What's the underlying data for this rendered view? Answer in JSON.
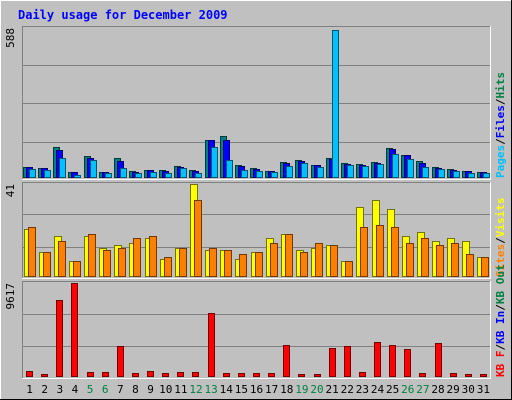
{
  "chart_data": {
    "type": "bar",
    "title": "Daily usage for December 2009",
    "categories": [
      "1",
      "2",
      "3",
      "4",
      "5",
      "6",
      "7",
      "8",
      "9",
      "10",
      "11",
      "12",
      "13",
      "14",
      "15",
      "16",
      "17",
      "18",
      "19",
      "20",
      "21",
      "22",
      "23",
      "24",
      "25",
      "26",
      "27",
      "28",
      "29",
      "30",
      "31"
    ],
    "weekend_categories": [
      "5",
      "6",
      "12",
      "13",
      "19",
      "20",
      "26",
      "27"
    ],
    "panels": [
      {
        "name": "hits-files-pages",
        "ymax": 588,
        "ymax_label": "588",
        "legend_words": [
          {
            "text": "Pages",
            "color": "#00c0ff"
          },
          {
            "text": "/",
            "color": "#000000"
          },
          {
            "text": "Files",
            "color": "#0000ff"
          },
          {
            "text": "/",
            "color": "#000000"
          },
          {
            "text": "Hits",
            "color": "#008040"
          }
        ],
        "series": [
          {
            "key": "hits",
            "color": "#008080",
            "values": [
              45,
              38,
              120,
              25,
              85,
              25,
              80,
              28,
              32,
              30,
              48,
              30,
              150,
              165,
              50,
              38,
              28,
              62,
              72,
              52,
              80,
              58,
              55,
              62,
              118,
              92,
              68,
              42,
              35,
              28,
              25
            ]
          },
          {
            "key": "files",
            "color": "#0000ff",
            "values": [
              42,
              38,
              110,
              22,
              80,
              22,
              68,
              25,
              30,
              28,
              45,
              26,
              148,
              150,
              48,
              35,
              26,
              60,
              68,
              50,
              75,
              56,
              52,
              60,
              115,
              90,
              60,
              40,
              32,
              26,
              22
            ]
          },
          {
            "key": "pages",
            "color": "#00c0ff",
            "values": [
              35,
              32,
              78,
              10,
              70,
              18,
              40,
              18,
              25,
              20,
              38,
              20,
              120,
              72,
              32,
              28,
              22,
              48,
              60,
              42,
              580,
              52,
              48,
              55,
              95,
              75,
              45,
              35,
              28,
              20,
              20
            ]
          }
        ]
      },
      {
        "name": "visits-sites",
        "ymax": 41,
        "ymax_label": "41",
        "legend_words": [
          {
            "text": "Sites",
            "color": "#ff8000"
          },
          {
            "text": "/",
            "color": "#000000"
          },
          {
            "text": "Visits",
            "color": "#ffff00"
          }
        ],
        "series": [
          {
            "key": "visits",
            "color": "#ffff00",
            "values": [
              21,
              11,
              18,
              7,
              18,
              13,
              14,
              15,
              17,
              8,
              13,
              41,
              12,
              12,
              8,
              11,
              17,
              19,
              12,
              13,
              14,
              7,
              31,
              34,
              30,
              18,
              20,
              16,
              17,
              16,
              9
            ]
          },
          {
            "key": "sites",
            "color": "#ff8000",
            "values": [
              22,
              11,
              16,
              7,
              19,
              12,
              13,
              17,
              18,
              9,
              13,
              34,
              13,
              12,
              10,
              11,
              15,
              19,
              11,
              15,
              14,
              7,
              22,
              23,
              22,
              15,
              17,
              14,
              15,
              10,
              9
            ]
          }
        ]
      },
      {
        "name": "kbytes",
        "ymax": 9617,
        "ymax_label": "9617",
        "legend_words": [
          {
            "text": "KB F",
            "color": "#ff0000"
          },
          {
            "text": "/",
            "color": "#000000"
          },
          {
            "text": "KB In",
            "color": "#0000ff"
          },
          {
            "text": "/",
            "color": "#000000"
          },
          {
            "text": "KB Out",
            "color": "#008040"
          }
        ],
        "series": [
          {
            "key": "kbf",
            "color": "#ff0000",
            "values": [
              600,
              260,
              7900,
              9600,
              500,
              500,
              3200,
              380,
              600,
              380,
              560,
              500,
              6500,
              380,
              420,
              380,
              420,
              3300,
              320,
              260,
              3000,
              3200,
              550,
              3600,
              3300,
              2900,
              380,
              3500,
              380,
              260,
              260
            ]
          }
        ]
      }
    ]
  }
}
